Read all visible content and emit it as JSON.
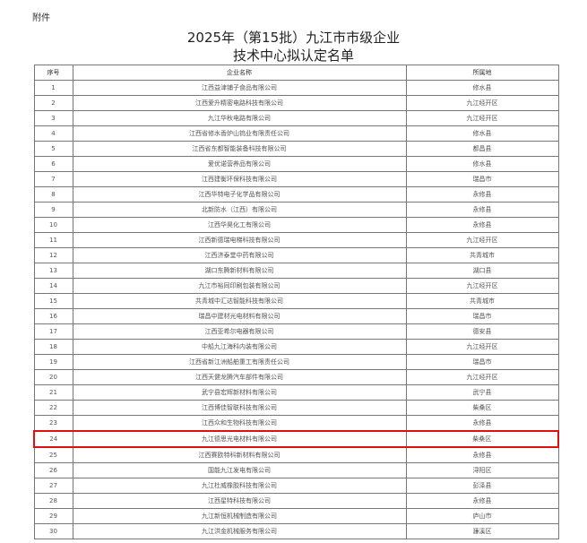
{
  "attachment_label": "附件",
  "title_line1": "2025年（第15批）九江市市级企业",
  "title_line2": "技术中心拟认定名单",
  "highlight_color": "#e01010",
  "highlighted_row": 24,
  "table": {
    "headers": [
      "序号",
      "企业名称",
      "所属地"
    ],
    "rows": [
      [
        "1",
        "江西益津铺子食品有限公司",
        "修水县"
      ],
      [
        "2",
        "江西爱升精密电路科技有限公司",
        "九江经开区"
      ],
      [
        "3",
        "九江华秋电路有限公司",
        "九江经开区"
      ],
      [
        "4",
        "江西省修水香炉山钨业有限责任公司",
        "修水县"
      ],
      [
        "5",
        "江西省东都智能装备科技有限公司",
        "都昌县"
      ],
      [
        "6",
        "爱优诺营养品有限公司",
        "修水县"
      ],
      [
        "7",
        "江西建衡环保科技有限公司",
        "瑞昌市"
      ],
      [
        "8",
        "江西华特电子化学品有限公司",
        "永修县"
      ],
      [
        "9",
        "北新防水（江西）有限公司",
        "永修县"
      ],
      [
        "10",
        "江西华昊化工有限公司",
        "永修县"
      ],
      [
        "11",
        "江西新德瑞电梯科技有限公司",
        "九江经开区"
      ],
      [
        "12",
        "江西济泰堂中药有限公司",
        "共青城市"
      ],
      [
        "13",
        "湖口东腾新材料有限公司",
        "湖口县"
      ],
      [
        "14",
        "九江市裕同印刷包装有限公司",
        "九江经开区"
      ],
      [
        "15",
        "共青城中汇达智能科技有限公司",
        "共青城市"
      ],
      [
        "16",
        "瑞昌中建材光电材料有限公司",
        "瑞昌市"
      ],
      [
        "17",
        "江西亚希尔电器有限公司",
        "德安县"
      ],
      [
        "18",
        "中船九江海科内装有限公司",
        "九江经开区"
      ],
      [
        "19",
        "江西省新江洲船舶重工有限责任公司",
        "瑞昌市"
      ],
      [
        "20",
        "江西天健龙腾汽车部件有限公司",
        "九江经开区"
      ],
      [
        "21",
        "武宁县宏辉新材料有限公司",
        "武宁县"
      ],
      [
        "22",
        "江西博佳智联科技有限公司",
        "柴桑区"
      ],
      [
        "23",
        "江西众和生物科技有限公司",
        "永修县"
      ],
      [
        "24",
        "九江德思光电材料有限公司",
        "柴桑区"
      ],
      [
        "25",
        "江西赛欧特科新材料有限公司",
        "永修县"
      ],
      [
        "26",
        "国能九江发电有限公司",
        "浔阳区"
      ],
      [
        "27",
        "九江杜威橡胶科技有限公司",
        "彭泽县"
      ],
      [
        "28",
        "江西星特科技有限公司",
        "永修县"
      ],
      [
        "29",
        "九江新恒机械制造有限公司",
        "庐山市"
      ],
      [
        "30",
        "九江洪金机械服务有限公司",
        "濂溪区"
      ]
    ]
  }
}
